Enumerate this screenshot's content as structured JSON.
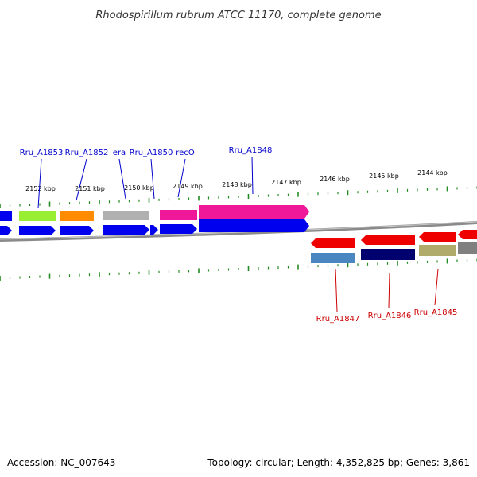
{
  "title": "Rhodospirillum rubrum ATCC 11170, complete genome",
  "footer": {
    "accession": "Accession: NC_007643",
    "summary": "Topology: circular; Length: 4,352,825 bp; Genes: 3,861"
  },
  "colors": {
    "top_label": "#0000cc",
    "bottom_label": "#cc0000",
    "tick": "#228b22",
    "backbone": "#8a8a8a"
  },
  "kbp_ticks": [
    {
      "label": "2152 kbp"
    },
    {
      "label": "2151 kbp"
    },
    {
      "label": "2150 kbp"
    },
    {
      "label": "2149 kbp"
    },
    {
      "label": "2148 kbp"
    },
    {
      "label": "2147 kbp"
    },
    {
      "label": "2146 kbp"
    },
    {
      "label": "2145 kbp"
    },
    {
      "label": "2144 kbp"
    }
  ],
  "top_gene_labels": [
    {
      "label": "Rru_A1853"
    },
    {
      "label": "Rru_A1852"
    },
    {
      "label": "era"
    },
    {
      "label": "Rru_A1850"
    },
    {
      "label": "recO"
    },
    {
      "label": "Rru_A1848"
    }
  ],
  "bottom_gene_labels": [
    {
      "label": "Rru_A1847"
    },
    {
      "label": "Rru_A1846"
    },
    {
      "label": "Rru_A1845"
    }
  ],
  "forward_genes": [
    {
      "color": "#0000ee",
      "product_color": "#0000ee"
    },
    {
      "color": "#0000ee",
      "product_color": "#99ee33"
    },
    {
      "color": "#0000ee",
      "product_color": "#ff8c00"
    },
    {
      "color": "#0000ee",
      "product_color": "#b0b0b0"
    },
    {
      "color": "#0000ee",
      "product_color": null
    },
    {
      "color": "#0000ee",
      "product_color": "#ee1899"
    },
    {
      "color": "#0000ee",
      "product_color": "#ee1899"
    }
  ],
  "reverse_genes": [
    {
      "color": "#ee0000",
      "product_color": "#4a86c0"
    },
    {
      "color": "#ee0000",
      "product_color": "#00006e"
    },
    {
      "color": "#ee0000",
      "product_color": "#b0ab6a"
    },
    {
      "color": "#ee0000",
      "product_color": "#808080"
    }
  ]
}
